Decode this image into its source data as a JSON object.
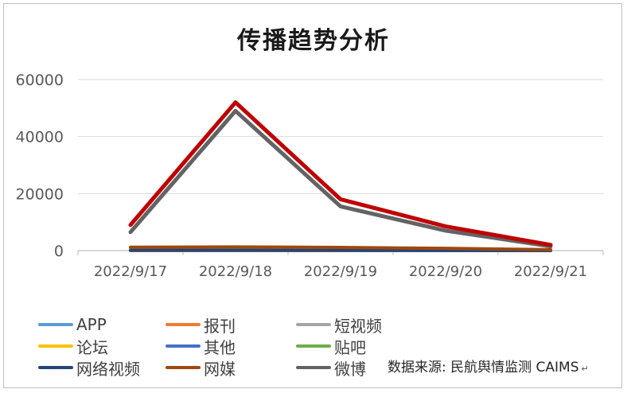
{
  "chart_data": {
    "type": "line",
    "title": "传播趋势分析",
    "categories": [
      "2022/9/17",
      "2022/9/18",
      "2022/9/19",
      "2022/9/20",
      "2022/9/21"
    ],
    "ylim": [
      0,
      60000
    ],
    "yticks": [
      "0",
      "20000",
      "40000",
      "60000"
    ],
    "grid": true,
    "legend_position": "bottom",
    "series": [
      {
        "name": "APP",
        "color": "#5b9bd5",
        "values": [
          0,
          0,
          0,
          0,
          0
        ]
      },
      {
        "name": "报刊",
        "color": "#ed7d31",
        "values": [
          0,
          0,
          0,
          0,
          0
        ]
      },
      {
        "name": "短视频",
        "color": "#a5a5a5",
        "values": [
          100,
          100,
          100,
          50,
          20
        ]
      },
      {
        "name": "论坛",
        "color": "#ffc000",
        "values": [
          300,
          300,
          200,
          100,
          50
        ]
      },
      {
        "name": "其他",
        "color": "#4472c4",
        "values": [
          200,
          200,
          150,
          80,
          30
        ]
      },
      {
        "name": "贴吧",
        "color": "#70ad47",
        "values": [
          300,
          300,
          250,
          100,
          30
        ]
      },
      {
        "name": "网络视频",
        "color": "#264478",
        "values": [
          100,
          100,
          80,
          40,
          10
        ]
      },
      {
        "name": "网媒",
        "color": "#9e480e",
        "values": [
          1200,
          1300,
          1100,
          800,
          300
        ]
      },
      {
        "name": "微博",
        "color": "#636363",
        "values": [
          6500,
          49000,
          15500,
          7000,
          1500
        ]
      },
      {
        "name": "",
        "color": "#c00000",
        "values": [
          9000,
          52000,
          18000,
          8500,
          2000
        ]
      }
    ]
  },
  "source": {
    "text": "数据来源: 民航舆情监测 CAIMS",
    "mark": "↵"
  }
}
